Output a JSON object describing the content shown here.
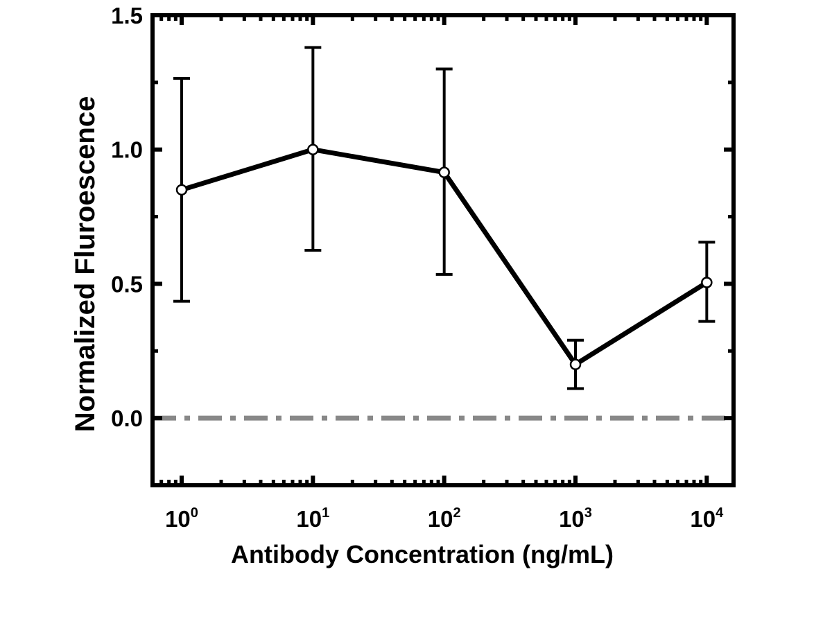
{
  "chart_data": {
    "type": "line",
    "xlabel": "Antibody Concentration (ng/mL)",
    "ylabel": "Normalized Fluroescence",
    "x_scale": "log",
    "xlim": [
      0.6,
      16000
    ],
    "ylim": [
      -0.25,
      1.5
    ],
    "y_ticks": [
      0.0,
      0.5,
      1.0,
      1.5
    ],
    "y_tick_labels": [
      "0.0",
      "0.5",
      "1.0",
      "1.5"
    ],
    "x_ticks": [
      1,
      10,
      100,
      1000,
      10000
    ],
    "x_tick_labels": [
      {
        "base": "10",
        "exp": "0"
      },
      {
        "base": "10",
        "exp": "1"
      },
      {
        "base": "10",
        "exp": "2"
      },
      {
        "base": "10",
        "exp": "3"
      },
      {
        "base": "10",
        "exp": "4"
      }
    ],
    "grid": false,
    "series": [
      {
        "x": [
          1,
          10,
          100,
          1000,
          10000
        ],
        "y": [
          0.85,
          1.0,
          0.915,
          0.2,
          0.505
        ],
        "y_err_low": [
          0.435,
          0.625,
          0.535,
          0.11,
          0.36
        ],
        "y_err_high": [
          1.265,
          1.38,
          1.3,
          0.29,
          0.655
        ],
        "color": "#000000",
        "marker": "open-circle"
      }
    ],
    "reference_line": {
      "y": 0.0,
      "style": "dash-dot",
      "color": "#888888"
    }
  }
}
